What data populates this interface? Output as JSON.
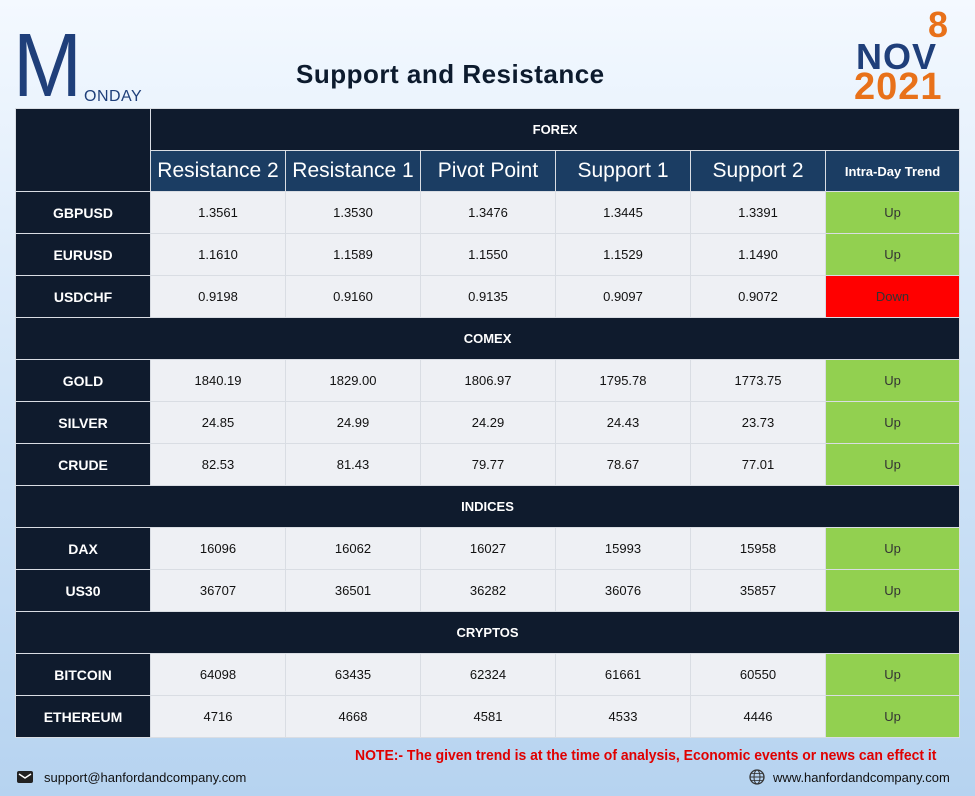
{
  "header": {
    "day_initial": "M",
    "day_rest": "ONDAY",
    "title": "Support and Resistance",
    "date_day": "8",
    "date_month": "NOV",
    "date_year": "2021"
  },
  "columns": [
    "Resistance 2",
    "Resistance 1",
    "Pivot Point",
    "Support 1",
    "Support 2",
    "Intra-Day Trend"
  ],
  "sections": [
    {
      "name": "FOREX",
      "rows": [
        {
          "symbol": "GBPUSD",
          "r2": "1.3561",
          "r1": "1.3530",
          "pp": "1.3476",
          "s1": "1.3445",
          "s2": "1.3391",
          "trend": "Up"
        },
        {
          "symbol": "EURUSD",
          "r2": "1.1610",
          "r1": "1.1589",
          "pp": "1.1550",
          "s1": "1.1529",
          "s2": "1.1490",
          "trend": "Up"
        },
        {
          "symbol": "USDCHF",
          "r2": "0.9198",
          "r1": "0.9160",
          "pp": "0.9135",
          "s1": "0.9097",
          "s2": "0.9072",
          "trend": "Down"
        }
      ]
    },
    {
      "name": "COMEX",
      "rows": [
        {
          "symbol": "GOLD",
          "r2": "1840.19",
          "r1": "1829.00",
          "pp": "1806.97",
          "s1": "1795.78",
          "s2": "1773.75",
          "trend": "Up"
        },
        {
          "symbol": "SILVER",
          "r2": "24.85",
          "r1": "24.99",
          "pp": "24.29",
          "s1": "24.43",
          "s2": "23.73",
          "trend": "Up"
        },
        {
          "symbol": "CRUDE",
          "r2": "82.53",
          "r1": "81.43",
          "pp": "79.77",
          "s1": "78.67",
          "s2": "77.01",
          "trend": "Up"
        }
      ]
    },
    {
      "name": "INDICES",
      "rows": [
        {
          "symbol": "DAX",
          "r2": "16096",
          "r1": "16062",
          "pp": "16027",
          "s1": "15993",
          "s2": "15958",
          "trend": "Up"
        },
        {
          "symbol": "US30",
          "r2": "36707",
          "r1": "36501",
          "pp": "36282",
          "s1": "36076",
          "s2": "35857",
          "trend": "Up"
        }
      ]
    },
    {
      "name": "CRYPTOS",
      "rows": [
        {
          "symbol": "BITCOIN",
          "r2": "64098",
          "r1": "63435",
          "pp": "62324",
          "s1": "61661",
          "s2": "60550",
          "trend": "Up"
        },
        {
          "symbol": "ETHEREUM",
          "r2": "4716",
          "r1": "4668",
          "pp": "4581",
          "s1": "4533",
          "s2": "4446",
          "trend": "Up"
        }
      ]
    }
  ],
  "colors": {
    "up": "#92d050",
    "down": "#ff0000",
    "dark": "#0f1b2d",
    "header_blue": "#1b3d63",
    "accent_orange": "#e8711a",
    "brand_blue": "#1f3f7a"
  },
  "footer": {
    "note": "NOTE:- The given trend is at the time of analysis, Economic events or news can effect it",
    "email": "support@hanfordandcompany.com",
    "email_icon": "mail-icon",
    "website": "www.hanfordandcompany.com",
    "website_icon": "globe-icon"
  }
}
